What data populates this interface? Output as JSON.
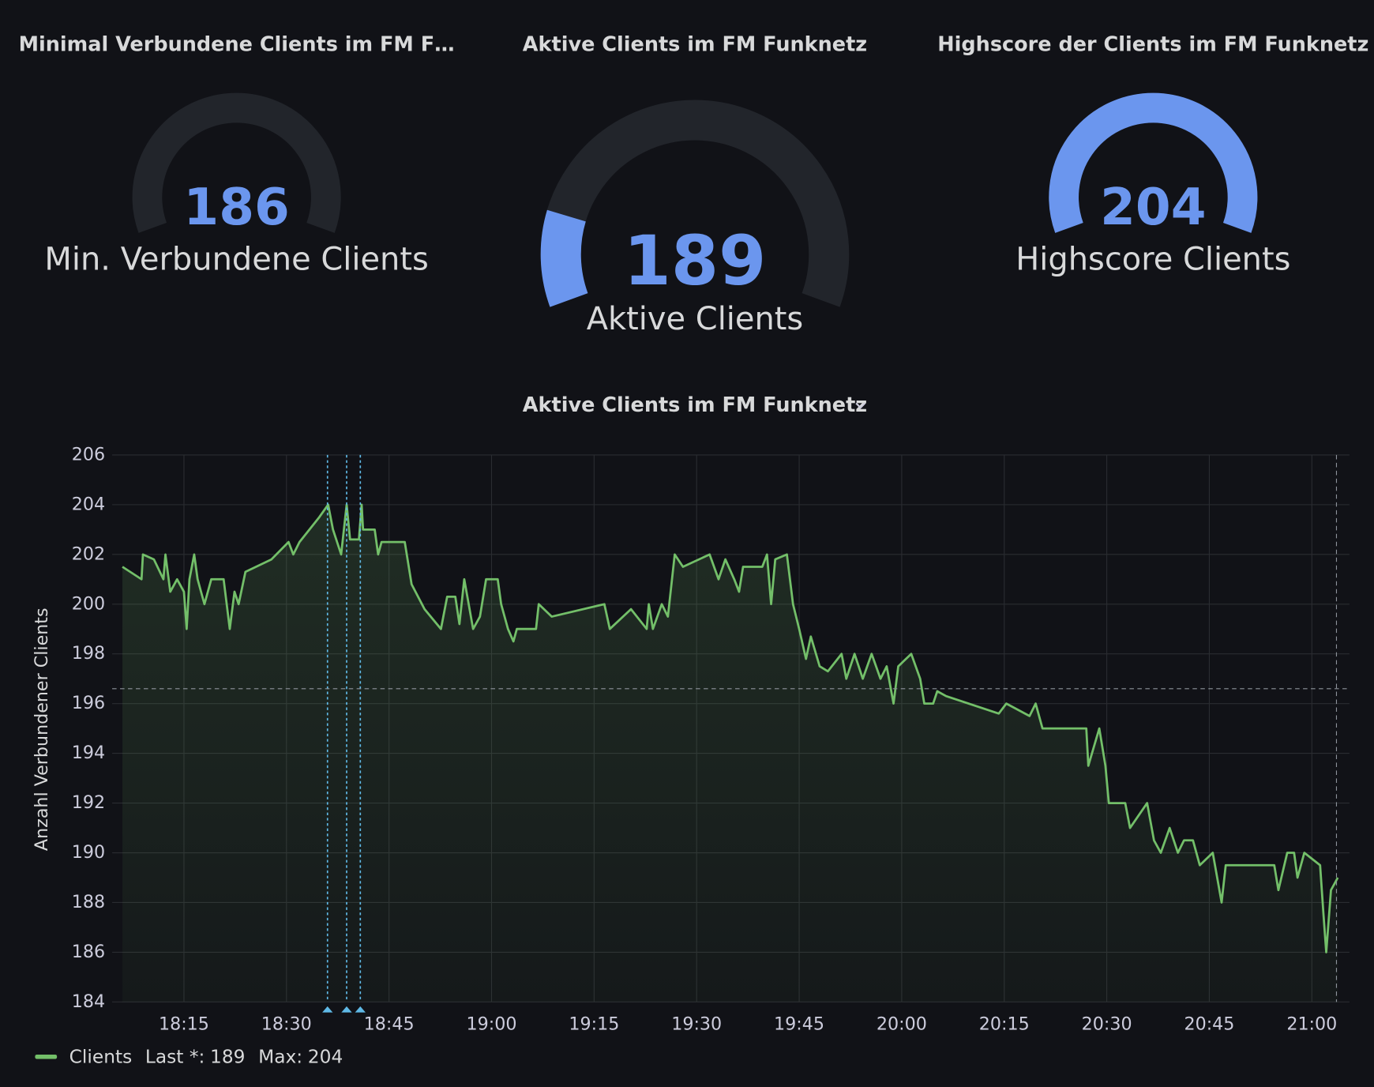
{
  "gauges": [
    {
      "title": "Minimal Verbundene Clients im FM F…",
      "value": 186,
      "label": "Min. Verbundene Clients",
      "range": [
        186,
        204
      ],
      "color": "#6b96ee"
    },
    {
      "title": "Aktive Clients im FM Funknetz",
      "value": 189,
      "label": "Aktive Clients",
      "range": [
        186,
        204
      ],
      "color": "#6b96ee"
    },
    {
      "title": "Highscore der Clients im FM Funknetz",
      "value": 204,
      "label": "Highscore Clients",
      "range": [
        186,
        204
      ],
      "color": "#6b96ee"
    }
  ],
  "chart_data": {
    "type": "line",
    "title": "Aktive Clients im FM Funknetz",
    "y_label": "Anzahl Verbundener Clients",
    "x": [
      1086,
      1088.8,
      1089,
      1090.6,
      1092,
      1092.3,
      1093,
      1094,
      1095,
      1095.4,
      1095.8,
      1096.5,
      1097,
      1098,
      1099,
      1100.8,
      1101.7,
      1102.4,
      1103,
      1104,
      1107.8,
      1110.3,
      1111,
      1111.9,
      1114.8,
      1116.1,
      1116.8,
      1118,
      1118.8,
      1119.3,
      1120.6,
      1121,
      1121.2,
      1122.9,
      1123.4,
      1123.9,
      1127.3,
      1128.3,
      1130.2,
      1132.6,
      1133.5,
      1134.7,
      1135.3,
      1136,
      1137.3,
      1138.3,
      1139.2,
      1140.9,
      1141.4,
      1142.4,
      1143.2,
      1143.7,
      1146.5,
      1146.9,
      1148.8,
      1156.5,
      1157.3,
      1160.4,
      1162.7,
      1163,
      1163.6,
      1164.9,
      1165.8,
      1166.8,
      1168,
      1171.9,
      1173.2,
      1174.2,
      1175.5,
      1176.2,
      1176.8,
      1179.6,
      1180.3,
      1180.9,
      1181.5,
      1183.2,
      1184.1,
      1185,
      1186,
      1186.7,
      1188,
      1189.2,
      1191.2,
      1191.9,
      1193.1,
      1194.3,
      1195.6,
      1196.9,
      1197.8,
      1198.8,
      1199.5,
      1201.4,
      1202.7,
      1203.3,
      1204.6,
      1205.2,
      1206.5,
      1214.2,
      1215.3,
      1218.7,
      1219.6,
      1220.6,
      1227,
      1227.3,
      1228.9,
      1229.8,
      1230.3,
      1232.7,
      1233.4,
      1235.9,
      1236.9,
      1237.9,
      1239.2,
      1240.4,
      1241.3,
      1242.6,
      1243.6,
      1245.5,
      1246.8,
      1247.4,
      1254.5,
      1255.1,
      1256.4,
      1257.4,
      1257.9,
      1258.9,
      1261.2,
      1261.7,
      1262.1,
      1262.8,
      1263.8
    ],
    "series": [
      {
        "name": "Clients",
        "color": "#73bf69",
        "values": [
          201.5,
          201,
          202,
          201.8,
          201,
          202,
          200.5,
          201,
          200.5,
          199,
          201,
          202,
          201,
          200,
          201,
          201,
          199,
          200.5,
          200,
          201.3,
          201.8,
          202.5,
          202,
          202.5,
          203.5,
          204,
          203,
          202,
          204,
          202.6,
          202.6,
          204,
          203,
          203,
          202,
          202.5,
          202.5,
          200.8,
          199.8,
          199,
          200.3,
          200.3,
          199.2,
          201,
          199,
          199.5,
          201,
          201,
          200,
          199,
          198.5,
          199,
          199,
          200,
          199.5,
          200,
          199,
          199.8,
          199,
          200,
          199,
          200,
          199.5,
          202,
          201.5,
          202,
          201,
          201.8,
          201,
          200.5,
          201.5,
          201.5,
          202,
          200,
          201.8,
          202,
          200,
          199,
          197.8,
          198.7,
          197.5,
          197.3,
          198,
          197,
          198,
          197,
          198,
          197,
          197.5,
          196,
          197.5,
          198,
          197,
          196,
          196,
          196.5,
          196.3,
          195.6,
          196,
          195.5,
          196,
          195,
          195,
          193.5,
          195,
          193.5,
          192,
          192,
          191,
          192,
          190.5,
          190,
          191,
          190,
          190.5,
          190.5,
          189.5,
          190,
          188,
          189.5,
          189.5,
          188.5,
          190,
          190,
          189,
          190,
          189.5,
          187.5,
          186,
          188.5,
          189
        ]
      }
    ],
    "xlim": [
      1084.5,
      1265.5
    ],
    "xticks": [
      {
        "value": 1095,
        "label": "18:15"
      },
      {
        "value": 1110,
        "label": "18:30"
      },
      {
        "value": 1125,
        "label": "18:45"
      },
      {
        "value": 1140,
        "label": "19:00"
      },
      {
        "value": 1155,
        "label": "19:15"
      },
      {
        "value": 1170,
        "label": "19:30"
      },
      {
        "value": 1185,
        "label": "19:45"
      },
      {
        "value": 1200,
        "label": "20:00"
      },
      {
        "value": 1215,
        "label": "20:15"
      },
      {
        "value": 1230,
        "label": "20:30"
      },
      {
        "value": 1245,
        "label": "20:45"
      },
      {
        "value": 1260,
        "label": "21:00"
      }
    ],
    "ylim": [
      184,
      206
    ],
    "yticks": [
      184,
      186,
      188,
      190,
      192,
      194,
      196,
      198,
      200,
      202,
      204,
      206
    ],
    "grid": true,
    "annotations": [
      1116,
      1118.8,
      1120.8
    ],
    "crosshair": {
      "x": 1263.6,
      "y": 196.6
    },
    "legend_stats": [
      {
        "label": "Last *:",
        "value": 189
      },
      {
        "label": "Max:",
        "value": 204
      }
    ]
  }
}
